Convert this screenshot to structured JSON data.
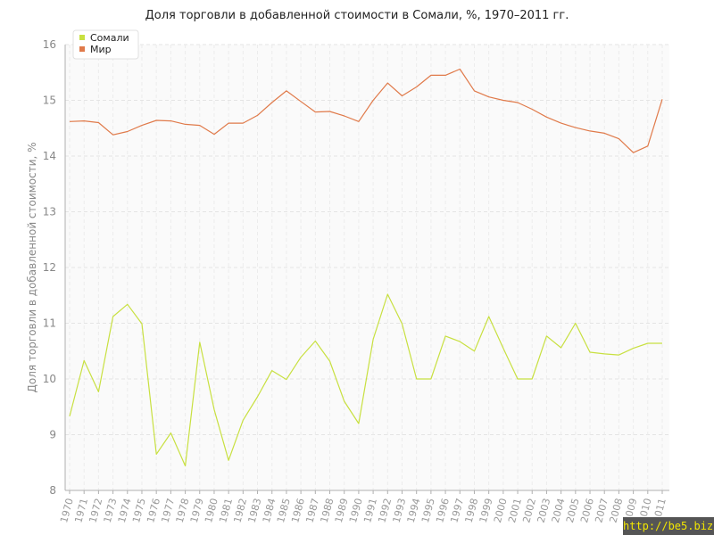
{
  "chart_data": {
    "type": "line",
    "title": "Доля торговли в добавленной стоимости в Сомали, %, 1970–2011 гг.",
    "xlabel": "",
    "ylabel": "Доля торговли в добавленной стоимости, %",
    "ylim": [
      8,
      16
    ],
    "yticks": [
      "8",
      "9",
      "10",
      "11",
      "12",
      "13",
      "14",
      "15",
      "16"
    ],
    "grid": true,
    "legend_position": "top-left",
    "categories": [
      "1970",
      "1971",
      "1972",
      "1973",
      "1974",
      "1975",
      "1976",
      "1977",
      "1978",
      "1979",
      "1980",
      "1981",
      "1982",
      "1983",
      "1984",
      "1985",
      "1986",
      "1987",
      "1988",
      "1989",
      "1990",
      "1991",
      "1992",
      "1993",
      "1994",
      "1995",
      "1996",
      "1997",
      "1998",
      "1999",
      "2000",
      "2001",
      "2002",
      "2003",
      "2004",
      "2005",
      "2006",
      "2007",
      "2008",
      "2009",
      "2010",
      "2011"
    ],
    "series": [
      {
        "name": "Сомали",
        "color": "#c8e040",
        "values": [
          9.33,
          10.33,
          9.77,
          11.12,
          11.34,
          10.99,
          8.65,
          9.03,
          8.44,
          10.66,
          9.45,
          8.54,
          9.26,
          9.68,
          10.15,
          9.99,
          10.39,
          10.68,
          10.32,
          9.6,
          9.2,
          10.71,
          11.52,
          10.99,
          10.0,
          10.0,
          10.77,
          10.67,
          10.5,
          11.12,
          10.55,
          10.0,
          10.0,
          10.77,
          10.56,
          11.0,
          10.48,
          10.45,
          10.43,
          10.55,
          10.64,
          10.64
        ]
      },
      {
        "name": "Мир",
        "color": "#e07a4a",
        "values": [
          14.62,
          14.63,
          14.6,
          14.38,
          14.44,
          14.55,
          14.64,
          14.63,
          14.57,
          14.55,
          14.39,
          14.59,
          14.59,
          14.73,
          14.96,
          15.17,
          14.98,
          14.79,
          14.8,
          14.72,
          14.62,
          15.0,
          15.31,
          15.08,
          15.24,
          15.45,
          15.45,
          15.56,
          15.17,
          15.06,
          15.0,
          14.96,
          14.84,
          14.7,
          14.59,
          14.51,
          14.45,
          14.41,
          14.31,
          14.06,
          14.18,
          15.02
        ]
      }
    ]
  },
  "watermark": "http://be5.biz/"
}
